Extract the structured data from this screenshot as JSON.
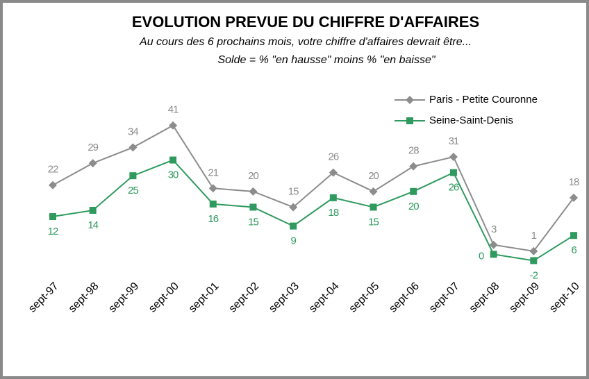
{
  "chart_data": {
    "type": "line",
    "title": "EVOLUTION PREVUE DU CHIFFRE D'AFFAIRES",
    "subtitle": [
      "Au cours des 6 prochains mois, votre chiffre d'affaires devrait être...",
      "Solde = % \"en hausse\"  moins % \"en baisse\""
    ],
    "categories": [
      "sept-97",
      "sept-98",
      "sept-99",
      "sept-00",
      "sept-01",
      "sept-02",
      "sept-03",
      "sept-04",
      "sept-05",
      "sept-06",
      "sept-07",
      "sept-08",
      "sept-09",
      "sept-10"
    ],
    "series": [
      {
        "name": "Paris - Petite Couronne",
        "color": "#8c8c8c",
        "marker": "diamond",
        "values": [
          22,
          29,
          34,
          41,
          21,
          20,
          15,
          26,
          20,
          28,
          31,
          3,
          1,
          18
        ]
      },
      {
        "name": "Seine-Saint-Denis",
        "color": "#2e9a5e",
        "marker": "square",
        "values": [
          12,
          14,
          25,
          30,
          16,
          15,
          9,
          18,
          15,
          20,
          26,
          0,
          -2,
          6
        ]
      }
    ],
    "ylim": [
      -5,
      50
    ],
    "legend": "top-right"
  }
}
